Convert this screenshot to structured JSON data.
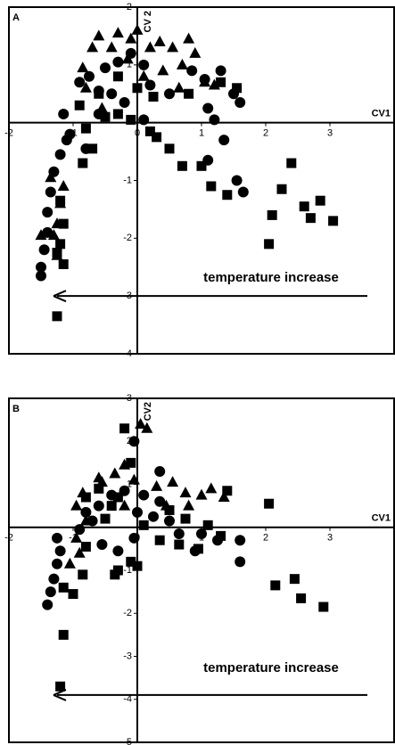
{
  "chart_data": [
    {
      "type": "scatter",
      "panel_label": "A",
      "x_label": "CV1",
      "y_label": "CV 2",
      "annotation": "temperature increase",
      "xlim": [
        -2,
        4
      ],
      "ylim": [
        -4,
        2
      ],
      "xticks": [
        -2,
        -1,
        0,
        1,
        2,
        3
      ],
      "yticks": [
        -4,
        -3,
        -2,
        -1,
        1,
        2
      ],
      "series": [
        {
          "marker": "square",
          "color": "#000000",
          "x": [
            2.4,
            2.25,
            2.1,
            2.05,
            2.6,
            2.7,
            2.85,
            3.05,
            1.15,
            1.4,
            1.0,
            0.7,
            0.5,
            0.3,
            0.2,
            -0.1,
            -0.3,
            -0.5,
            -0.85,
            -1.2,
            -1.15,
            -1.2,
            -1.15,
            -1.25,
            -1.25,
            -0.6,
            -0.3,
            0.25,
            0.8,
            1.3,
            1.55,
            -0.9,
            -0.7,
            -0.8,
            0.0
          ],
          "values": [
            -0.7,
            -1.15,
            -1.6,
            -2.1,
            -1.45,
            -1.65,
            -1.35,
            -1.7,
            -1.1,
            -1.25,
            -0.75,
            -0.75,
            -0.45,
            -0.25,
            -0.15,
            0.05,
            0.15,
            0.1,
            -0.7,
            -1.35,
            -1.75,
            -2.1,
            -2.45,
            -2.25,
            -3.35,
            0.5,
            0.8,
            0.45,
            0.5,
            0.7,
            0.6,
            0.3,
            -0.45,
            -0.1,
            0.6
          ]
        },
        {
          "marker": "circle",
          "color": "#000000",
          "x": [
            -1.5,
            -1.5,
            -1.45,
            -1.4,
            -1.4,
            -1.35,
            -1.3,
            -1.2,
            -1.1,
            -1.15,
            -0.8,
            -0.9,
            -0.75,
            -0.6,
            -0.5,
            -0.3,
            -0.1,
            0.1,
            0.2,
            -0.2,
            -0.4,
            0.5,
            0.85,
            1.05,
            1.1,
            1.2,
            1.35,
            1.5,
            1.6,
            1.65,
            1.55,
            1.1,
            0.1,
            -0.6,
            -1.05,
            1.3
          ],
          "values": [
            -2.5,
            -2.65,
            -2.2,
            -1.9,
            -1.55,
            -1.2,
            -0.85,
            -0.55,
            -0.3,
            0.15,
            -0.45,
            0.7,
            0.8,
            0.55,
            0.95,
            1.05,
            1.2,
            1.0,
            0.65,
            0.35,
            0.5,
            0.5,
            0.9,
            0.75,
            0.25,
            0.05,
            -0.3,
            0.5,
            0.35,
            -1.2,
            -1.0,
            -0.65,
            0.05,
            0.15,
            -0.2,
            0.9
          ]
        },
        {
          "marker": "triangle",
          "color": "#000000",
          "x": [
            -0.7,
            -0.6,
            -0.4,
            -0.3,
            -0.1,
            0.0,
            0.2,
            0.35,
            0.55,
            0.7,
            0.8,
            0.9,
            -0.85,
            -0.8,
            0.4,
            0.65,
            1.05,
            1.2,
            -0.55,
            -1.15,
            -1.2,
            -1.25,
            -1.3,
            -1.25,
            -1.5,
            -1.35,
            -0.15,
            0.1
          ],
          "values": [
            1.3,
            1.5,
            1.3,
            1.55,
            1.45,
            1.6,
            1.3,
            1.4,
            1.3,
            1.0,
            1.45,
            1.2,
            0.95,
            0.6,
            0.9,
            0.6,
            0.7,
            0.65,
            0.25,
            -1.1,
            -1.4,
            -1.75,
            -1.95,
            -2.3,
            -1.95,
            -0.95,
            1.1,
            0.8
          ]
        }
      ]
    },
    {
      "type": "scatter",
      "panel_label": "B",
      "x_label": "CV1",
      "y_label": "CV2",
      "annotation": "temperature increase",
      "xlim": [
        -2,
        4
      ],
      "ylim": [
        -5,
        3
      ],
      "xticks": [
        -2,
        -1,
        0,
        1,
        2,
        3
      ],
      "yticks": [
        -5,
        -4,
        -3,
        -2,
        -1,
        1,
        2,
        3
      ],
      "series": [
        {
          "marker": "square",
          "color": "#000000",
          "x": [
            2.15,
            2.45,
            2.55,
            2.9,
            2.05,
            1.4,
            1.1,
            1.3,
            0.95,
            0.65,
            0.35,
            0.1,
            -0.1,
            0.0,
            -0.3,
            -0.35,
            -0.8,
            -0.85,
            -1.15,
            -1.0,
            -1.15,
            -1.2,
            -0.2,
            -0.1,
            -0.6,
            -0.3,
            -0.4,
            0.5,
            0.75,
            -0.8,
            -0.5
          ],
          "values": [
            -1.35,
            -1.2,
            -1.65,
            -1.85,
            0.55,
            0.85,
            0.05,
            -0.2,
            -0.5,
            -0.4,
            -0.3,
            0.05,
            -0.8,
            -0.9,
            -1.0,
            -1.1,
            -0.45,
            -1.1,
            -1.4,
            -1.55,
            -2.5,
            -3.7,
            2.3,
            1.5,
            0.9,
            0.7,
            0.5,
            0.4,
            0.2,
            0.7,
            0.2
          ]
        },
        {
          "marker": "circle",
          "color": "#000000",
          "x": [
            -1.4,
            -1.35,
            -1.3,
            -1.25,
            -1.25,
            -1.2,
            -0.9,
            -0.8,
            -0.7,
            -0.6,
            -0.4,
            -0.2,
            0.0,
            0.1,
            0.35,
            0.35,
            0.5,
            0.65,
            0.9,
            1.0,
            1.25,
            1.6,
            1.6,
            -0.05,
            -0.3,
            -0.05,
            0.25,
            -0.55
          ],
          "values": [
            -1.8,
            -1.5,
            -1.2,
            -0.85,
            -0.25,
            -0.55,
            -0.05,
            0.35,
            0.15,
            0.5,
            0.75,
            0.85,
            0.35,
            0.75,
            0.6,
            1.3,
            0.15,
            -0.15,
            -0.55,
            -0.15,
            -0.3,
            -0.3,
            -0.8,
            2.0,
            -0.55,
            -0.25,
            0.25,
            -0.4
          ]
        },
        {
          "marker": "triangle",
          "color": "#000000",
          "x": [
            0.05,
            0.15,
            -0.6,
            -0.55,
            -0.35,
            -0.2,
            -0.05,
            0.3,
            0.55,
            0.75,
            1.0,
            1.15,
            1.35,
            -0.85,
            -0.95,
            -0.8,
            -0.9,
            -0.95,
            -1.05,
            0.45,
            0.8,
            -0.2
          ],
          "values": [
            2.4,
            2.3,
            1.15,
            1.05,
            1.25,
            1.45,
            1.1,
            0.95,
            1.05,
            0.8,
            0.75,
            0.9,
            0.7,
            0.8,
            0.5,
            0.15,
            -0.6,
            -0.25,
            -0.85,
            0.5,
            0.5,
            0.5
          ]
        }
      ]
    }
  ]
}
